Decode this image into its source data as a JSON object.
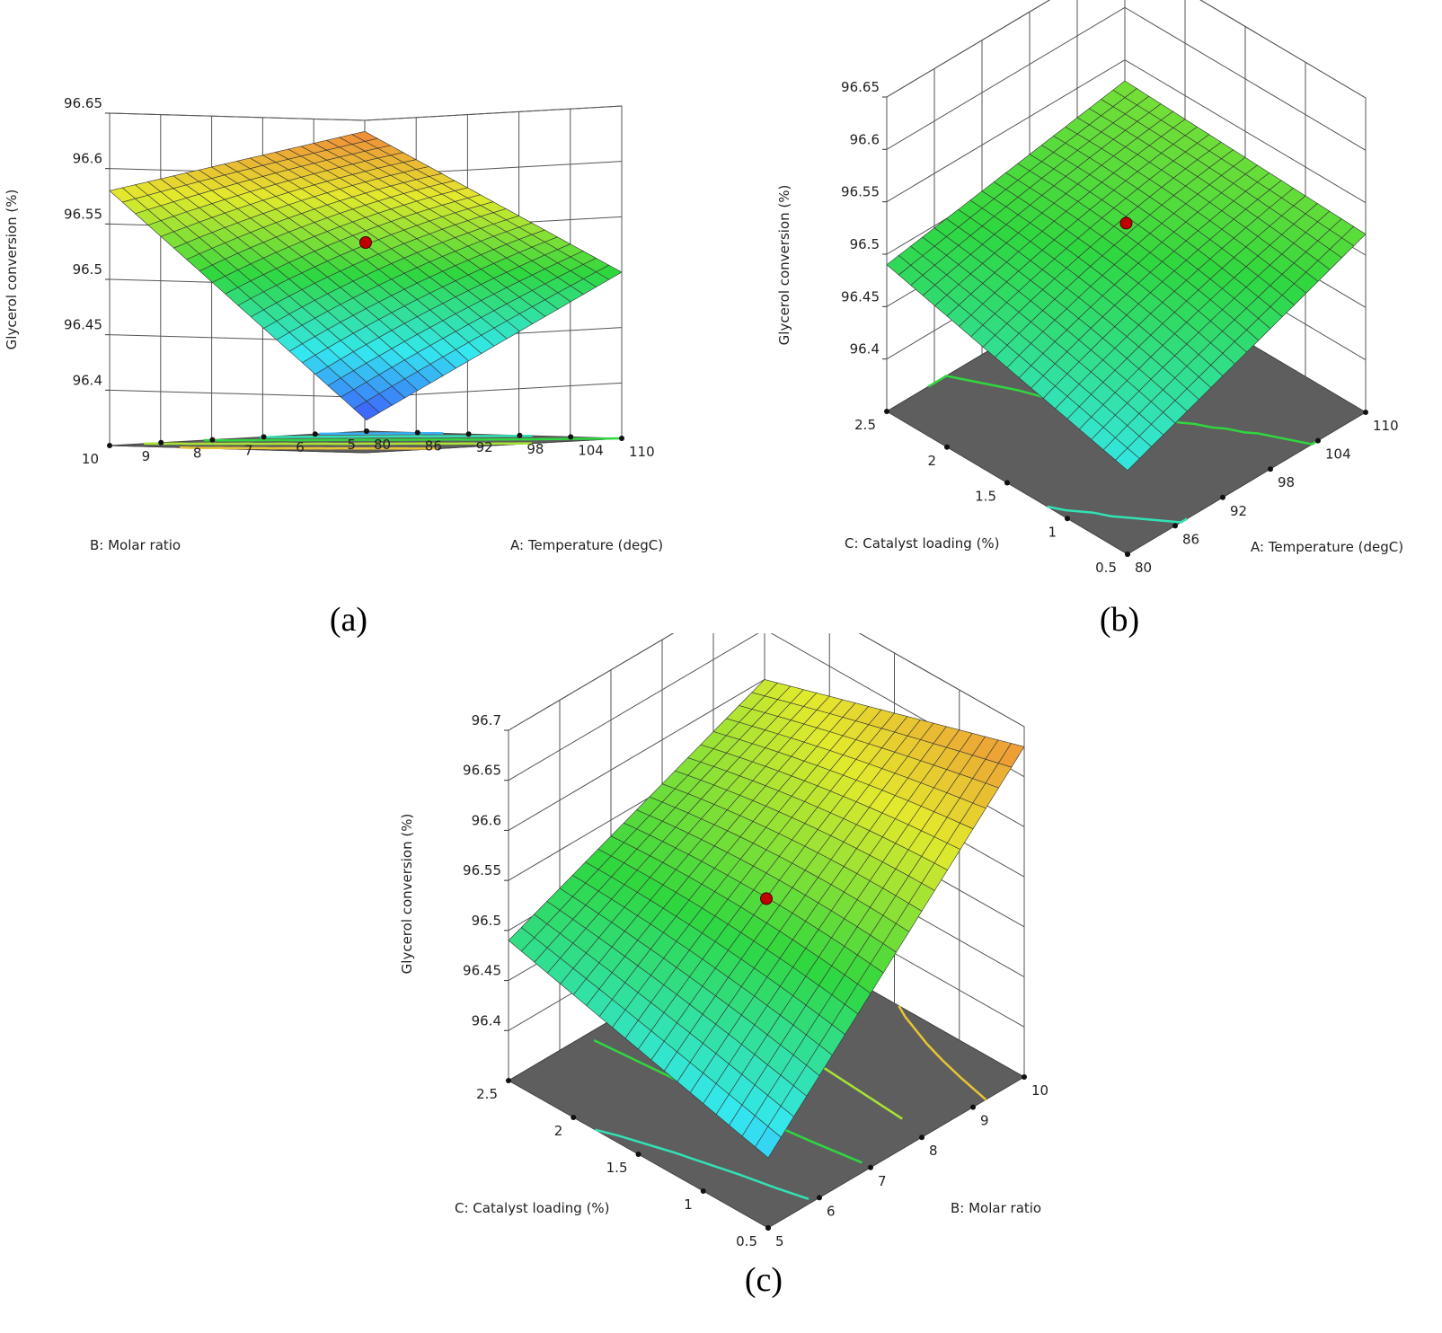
{
  "chart_data": [
    {
      "type": "surface3d",
      "label": "(a)",
      "zlabel": "Glycerol conversion (%)",
      "zticks": [
        "96.4",
        "96.45",
        "96.5",
        "96.55",
        "96.6",
        "96.65"
      ],
      "zlim": [
        96.35,
        96.65
      ],
      "x_axis": {
        "label": "A: Temperature (degC)",
        "ticks": [
          "80",
          "86",
          "92",
          "98",
          "104",
          "110"
        ],
        "range": [
          80,
          110
        ]
      },
      "y_axis": {
        "label": "B: Molar ratio",
        "ticks": [
          "5",
          "6",
          "7",
          "8",
          "9",
          "10"
        ],
        "range": [
          5,
          10
        ]
      },
      "corner_values": {
        "x_min_y_min": 96.36,
        "x_max_y_min": 96.5,
        "x_min_y_max": 96.58,
        "x_max_y_max": 96.64
      },
      "center_point": {
        "x": 95,
        "y": 7.5,
        "z": 96.53
      },
      "colormap": [
        "#3f3fff",
        "#34e8f0",
        "#2fd73f",
        "#e3ea2d",
        "#f27b3b"
      ]
    },
    {
      "type": "surface3d",
      "label": "(b)",
      "zlabel": "Glycerol conversion (%)",
      "zticks": [
        "96.4",
        "96.45",
        "96.5",
        "96.55",
        "96.6",
        "96.65"
      ],
      "zlim": [
        96.35,
        96.65
      ],
      "x_axis": {
        "label": "A: Temperature (degC)",
        "ticks": [
          "80",
          "86",
          "92",
          "98",
          "104",
          "110"
        ],
        "range": [
          80,
          110
        ]
      },
      "y_axis": {
        "label": "C: Catalyst loading (%)",
        "ticks": [
          "0.5",
          "1",
          "1.5",
          "2",
          "2.5"
        ],
        "range": [
          0.5,
          2.5
        ]
      },
      "corner_values": {
        "x_min_y_min": 96.43,
        "x_max_y_min": 96.52,
        "x_min_y_max": 96.49,
        "x_max_y_max": 96.53
      },
      "center_point": {
        "x": 95,
        "y": 1.5,
        "z": 96.53
      },
      "colormap": [
        "#3f3fff",
        "#34e8f0",
        "#2fd73f",
        "#e3ea2d",
        "#f27b3b"
      ]
    },
    {
      "type": "surface3d",
      "label": "(c)",
      "zlabel": "Glycerol conversion (%)",
      "zticks": [
        "96.4",
        "96.45",
        "96.5",
        "96.55",
        "96.6",
        "96.65",
        "96.7"
      ],
      "zlim": [
        96.35,
        96.7
      ],
      "x_axis": {
        "label": "B: Molar ratio",
        "ticks": [
          "5",
          "6",
          "7",
          "8",
          "9",
          "10"
        ],
        "range": [
          5,
          10
        ]
      },
      "y_axis": {
        "label": "C: Catalyst loading (%)",
        "ticks": [
          "0.5",
          "1",
          "1.5",
          "2",
          "2.5"
        ],
        "range": [
          0.5,
          2.5
        ]
      },
      "corner_values": {
        "x_min_y_min": 96.42,
        "x_max_y_min": 96.68,
        "x_min_y_max": 96.49,
        "x_max_y_max": 96.6
      },
      "center_point": {
        "x": 7.5,
        "y": 1.5,
        "z": 96.53
      },
      "colormap": [
        "#3f3fff",
        "#34e8f0",
        "#2fd73f",
        "#e3ea2d",
        "#f27b3b"
      ]
    }
  ]
}
